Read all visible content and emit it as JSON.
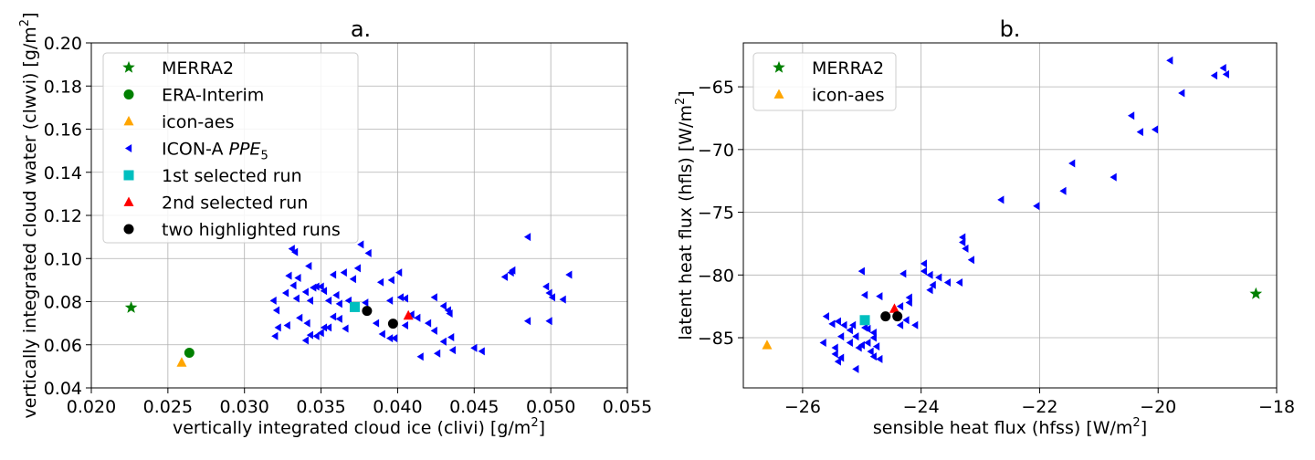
{
  "chart_data": [
    {
      "type": "scatter",
      "title": "a.",
      "xlabel": "vertically integrated cloud ice (clivi) [g/m²]",
      "ylabel": "vertically integrated cloud water (clwvi) [g/m²]",
      "xlim": [
        0.02,
        0.055
      ],
      "ylim": [
        0.04,
        0.2
      ],
      "xticks": [
        "0.020",
        "0.025",
        "0.030",
        "0.035",
        "0.040",
        "0.045",
        "0.050",
        "0.055"
      ],
      "yticks": [
        "0.04",
        "0.06",
        "0.08",
        "0.10",
        "0.12",
        "0.14",
        "0.16",
        "0.18",
        "0.20"
      ],
      "grid": true,
      "legend_position": "upper-left",
      "series": [
        {
          "name": "MERRA2",
          "marker": "star",
          "color": "#008000",
          "points": [
            [
              0.0226,
              0.0772
            ]
          ]
        },
        {
          "name": "ERA-Interim",
          "marker": "circle",
          "color": "#008000",
          "points": [
            [
              0.0264,
              0.0563
            ]
          ]
        },
        {
          "name": "icon-aes",
          "marker": "triangle-up",
          "color": "#ffa500",
          "points": [
            [
              0.0259,
              0.0517
            ]
          ]
        },
        {
          "name": "ICON-A PPE5",
          "marker": "triangle-left",
          "color": "#0000ff",
          "points": [
            [
              0.0331,
              0.1045
            ],
            [
              0.0333,
              0.103
            ],
            [
              0.0376,
              0.1065
            ],
            [
              0.0381,
              0.1025
            ],
            [
              0.0485,
              0.11
            ],
            [
              0.0329,
              0.092
            ],
            [
              0.0335,
              0.091
            ],
            [
              0.0342,
              0.0965
            ],
            [
              0.0358,
              0.0925
            ],
            [
              0.0365,
              0.0935
            ],
            [
              0.0374,
              0.0955
            ],
            [
              0.0371,
              0.0905
            ],
            [
              0.0389,
              0.089
            ],
            [
              0.0401,
              0.0935
            ],
            [
              0.0396,
              0.09
            ],
            [
              0.0475,
              0.0945
            ],
            [
              0.0474,
              0.0935
            ],
            [
              0.047,
              0.0915
            ],
            [
              0.0512,
              0.0925
            ],
            [
              0.0497,
              0.087
            ],
            [
              0.0499,
              0.084
            ],
            [
              0.0501,
              0.082
            ],
            [
              0.0508,
              0.081
            ],
            [
              0.0319,
              0.0805
            ],
            [
              0.0327,
              0.084
            ],
            [
              0.0332,
              0.0875
            ],
            [
              0.0334,
              0.0815
            ],
            [
              0.034,
              0.0845
            ],
            [
              0.0345,
              0.0865
            ],
            [
              0.0347,
              0.087
            ],
            [
              0.035,
              0.087
            ],
            [
              0.0343,
              0.0805
            ],
            [
              0.0352,
              0.085
            ],
            [
              0.0355,
              0.0805
            ],
            [
              0.036,
              0.083
            ],
            [
              0.0362,
              0.079
            ],
            [
              0.0368,
              0.0805
            ],
            [
              0.0379,
              0.0795
            ],
            [
              0.0395,
              0.0805
            ],
            [
              0.0402,
              0.082
            ],
            [
              0.0405,
              0.0815
            ],
            [
              0.0424,
              0.082
            ],
            [
              0.043,
              0.078
            ],
            [
              0.0433,
              0.076
            ],
            [
              0.0434,
              0.0745
            ],
            [
              0.0413,
              0.0725
            ],
            [
              0.0321,
              0.076
            ],
            [
              0.0322,
              0.068
            ],
            [
              0.032,
              0.064
            ],
            [
              0.0328,
              0.069
            ],
            [
              0.0336,
              0.0725
            ],
            [
              0.0341,
              0.07
            ],
            [
              0.034,
              0.062
            ],
            [
              0.0343,
              0.0645
            ],
            [
              0.0347,
              0.064
            ],
            [
              0.035,
              0.0655
            ],
            [
              0.0352,
              0.068
            ],
            [
              0.0355,
              0.068
            ],
            [
              0.0358,
              0.073
            ],
            [
              0.0362,
              0.072
            ],
            [
              0.0366,
              0.0675
            ],
            [
              0.0386,
              0.07
            ],
            [
              0.039,
              0.065
            ],
            [
              0.0395,
              0.063
            ],
            [
              0.0398,
              0.063
            ],
            [
              0.0405,
              0.069
            ],
            [
              0.0409,
              0.074
            ],
            [
              0.0415,
              0.0545
            ],
            [
              0.042,
              0.07
            ],
            [
              0.0424,
              0.0665
            ],
            [
              0.0426,
              0.056
            ],
            [
              0.043,
              0.0615
            ],
            [
              0.0435,
              0.0635
            ],
            [
              0.0436,
              0.0575
            ],
            [
              0.045,
              0.0585
            ],
            [
              0.0455,
              0.057
            ],
            [
              0.0485,
              0.071
            ],
            [
              0.0499,
              0.071
            ]
          ]
        },
        {
          "name": "1st selected run",
          "marker": "square",
          "color": "#00bfbf",
          "points": [
            [
              0.0372,
              0.0775
            ]
          ]
        },
        {
          "name": "2nd selected run",
          "marker": "triangle-up",
          "color": "#ff0000",
          "points": [
            [
              0.0407,
              0.0735
            ]
          ]
        },
        {
          "name": "two highlighted runs",
          "marker": "circle",
          "color": "#000000",
          "points": [
            [
              0.038,
              0.0757
            ],
            [
              0.0397,
              0.0698
            ]
          ]
        }
      ]
    },
    {
      "type": "scatter",
      "title": "b.",
      "xlabel": "sensible heat flux (hfss) [W/m²]",
      "ylabel": "latent heat flux (hfls) [W/m²]",
      "xlim": [
        -27,
        -18
      ],
      "ylim": [
        -89,
        -61.5
      ],
      "xticks": [
        "−26",
        "−24",
        "−22",
        "−20",
        "−18"
      ],
      "yticks": [
        "−85",
        "−80",
        "−75",
        "−70",
        "−65"
      ],
      "grid": true,
      "legend_position": "upper-left",
      "series": [
        {
          "name": "MERRA2",
          "marker": "star",
          "color": "#008000",
          "points": [
            [
              -18.35,
              -81.5
            ]
          ]
        },
        {
          "name": "icon-aes",
          "marker": "triangle-up",
          "color": "#ffa500",
          "points": [
            [
              -26.6,
              -85.6
            ]
          ]
        },
        {
          "name": "",
          "marker": "triangle-left",
          "color": "#0000ff",
          "points": [
            [
              -19.8,
              -62.9
            ],
            [
              -18.9,
              -63.5
            ],
            [
              -18.85,
              -64.0
            ],
            [
              -19.05,
              -64.1
            ],
            [
              -19.6,
              -65.5
            ],
            [
              -20.45,
              -67.3
            ],
            [
              -20.05,
              -68.4
            ],
            [
              -20.3,
              -68.6
            ],
            [
              -21.45,
              -71.1
            ],
            [
              -20.75,
              -72.2
            ],
            [
              -21.6,
              -73.3
            ],
            [
              -22.65,
              -74.0
            ],
            [
              -22.05,
              -74.5
            ],
            [
              -23.3,
              -77.0
            ],
            [
              -23.3,
              -77.4
            ],
            [
              -23.25,
              -77.9
            ],
            [
              -23.15,
              -78.8
            ],
            [
              -23.95,
              -79.1
            ],
            [
              -23.95,
              -79.7
            ],
            [
              -24.3,
              -79.9
            ],
            [
              -25.0,
              -79.7
            ],
            [
              -23.85,
              -80.0
            ],
            [
              -23.7,
              -80.2
            ],
            [
              -23.55,
              -80.6
            ],
            [
              -23.35,
              -80.6
            ],
            [
              -23.8,
              -80.8
            ],
            [
              -23.85,
              -81.2
            ],
            [
              -24.2,
              -81.8
            ],
            [
              -24.2,
              -82.2
            ],
            [
              -24.35,
              -82.5
            ],
            [
              -24.7,
              -81.7
            ],
            [
              -24.95,
              -81.6
            ],
            [
              -25.6,
              -83.3
            ],
            [
              -25.4,
              -83.7
            ],
            [
              -25.5,
              -83.9
            ],
            [
              -25.3,
              -84.0
            ],
            [
              -25.15,
              -84.0
            ],
            [
              -24.95,
              -84.2
            ],
            [
              -24.9,
              -84.3
            ],
            [
              -24.8,
              -84.6
            ],
            [
              -25.2,
              -84.4
            ],
            [
              -25.35,
              -84.9
            ],
            [
              -25.1,
              -84.9
            ],
            [
              -24.8,
              -85.0
            ],
            [
              -25.65,
              -85.4
            ],
            [
              -25.45,
              -85.8
            ],
            [
              -25.2,
              -85.4
            ],
            [
              -25.0,
              -85.6
            ],
            [
              -24.9,
              -85.4
            ],
            [
              -24.75,
              -85.7
            ],
            [
              -25.05,
              -85.8
            ],
            [
              -24.85,
              -86.1
            ],
            [
              -24.8,
              -86.5
            ],
            [
              -24.7,
              -86.7
            ],
            [
              -25.35,
              -86.6
            ],
            [
              -25.4,
              -86.9
            ],
            [
              -25.1,
              -87.5
            ],
            [
              -24.35,
              -84.0
            ],
            [
              -24.1,
              -84.0
            ],
            [
              -24.25,
              -83.6
            ],
            [
              -25.45,
              -86.3
            ]
          ]
        },
        {
          "name": "",
          "marker": "square",
          "color": "#00bfbf",
          "points": [
            [
              -24.95,
              -83.6
            ]
          ]
        },
        {
          "name": "",
          "marker": "triangle-up",
          "color": "#ff0000",
          "points": [
            [
              -24.45,
              -82.7
            ]
          ]
        },
        {
          "name": "",
          "marker": "circle",
          "color": "#000000",
          "points": [
            [
              -24.6,
              -83.3
            ],
            [
              -24.4,
              -83.3
            ]
          ]
        }
      ]
    }
  ],
  "legends": {
    "a": [
      {
        "label": "MERRA2",
        "sub": "",
        "marker": "star",
        "color": "#008000"
      },
      {
        "label": "ERA-Interim",
        "sub": "",
        "marker": "circle",
        "color": "#008000"
      },
      {
        "label": "icon-aes",
        "sub": "",
        "marker": "triangle-up",
        "color": "#ffa500"
      },
      {
        "label": "ICON-A ",
        "italic": "PPE",
        "sub": "5",
        "marker": "triangle-left",
        "color": "#0000ff"
      },
      {
        "label": "1st selected run",
        "sub": "",
        "marker": "square",
        "color": "#00bfbf"
      },
      {
        "label": "2nd selected run",
        "sub": "",
        "marker": "triangle-up",
        "color": "#ff0000"
      },
      {
        "label": "two highlighted runs",
        "sub": "",
        "marker": "circle",
        "color": "#000000"
      }
    ],
    "b": [
      {
        "label": "MERRA2",
        "sub": "",
        "marker": "star",
        "color": "#008000"
      },
      {
        "label": "icon-aes",
        "sub": "",
        "marker": "triangle-up",
        "color": "#ffa500"
      }
    ]
  }
}
